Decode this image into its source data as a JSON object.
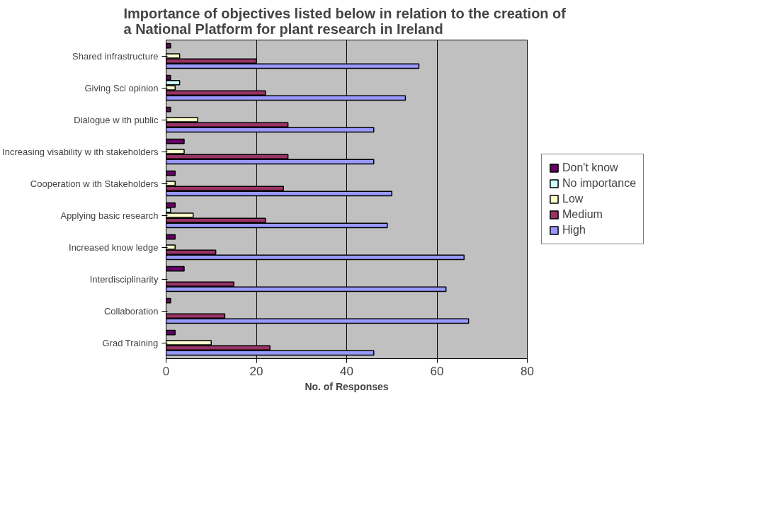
{
  "chart_data": {
    "type": "bar",
    "orientation": "horizontal",
    "title": "Importance of objectives listed below  in relation to the creation of\na National Platform for plant research in Ireland",
    "xlabel": "No. of Responses",
    "categories": [
      "Shared infrastructure",
      "Giving Sci opinion",
      "Dialogue w ith public",
      "Increasing visability w ith stakeholders",
      "Cooperation w ith Stakeholders",
      "Applying basic research",
      "Increased know ledge",
      "Interdisciplinarity",
      "Collaboration",
      "Grad Training"
    ],
    "series": [
      {
        "name": "Don't know",
        "color": "#660066",
        "values": [
          1,
          1,
          1,
          4,
          2,
          2,
          2,
          4,
          1,
          2
        ]
      },
      {
        "name": "No importance",
        "color": "#ccffff",
        "values": [
          null,
          3,
          null,
          null,
          null,
          1,
          null,
          null,
          null,
          null
        ]
      },
      {
        "name": "Low",
        "color": "#ffffcc",
        "values": [
          3,
          2,
          7,
          4,
          2,
          6,
          2,
          null,
          null,
          10
        ]
      },
      {
        "name": "Medium",
        "color": "#993366",
        "values": [
          20,
          22,
          27,
          27,
          26,
          22,
          11,
          15,
          13,
          23
        ]
      },
      {
        "name": "High",
        "color": "#9999ff",
        "values": [
          56,
          53,
          46,
          46,
          50,
          49,
          66,
          62,
          67,
          46
        ]
      }
    ],
    "xlim": [
      0,
      80
    ],
    "xticks": [
      0,
      20,
      40,
      60,
      80
    ],
    "grid": "x",
    "legend": "right"
  }
}
